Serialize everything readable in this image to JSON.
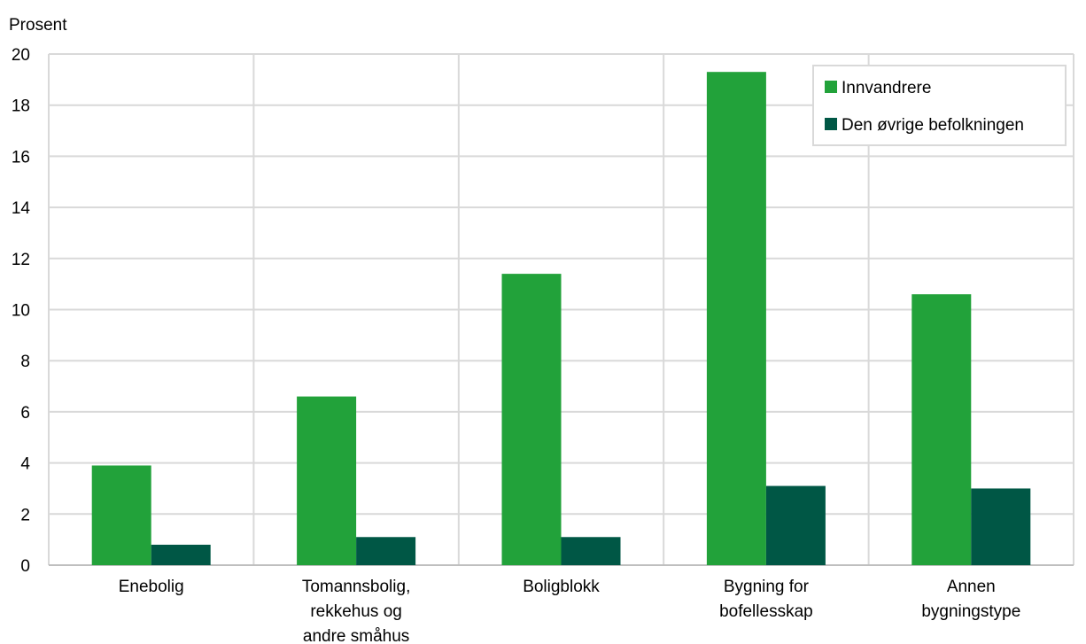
{
  "chart_data": {
    "type": "bar",
    "ylabel": "Prosent",
    "xlabel": "",
    "ylim": [
      0,
      20
    ],
    "yticks": [
      0,
      2,
      4,
      6,
      8,
      10,
      12,
      14,
      16,
      18,
      20
    ],
    "grid": true,
    "legend_position": "top-right",
    "categories": [
      [
        "Enebolig"
      ],
      [
        "Tomannsbolig,",
        "rekkehus og",
        "andre småhus"
      ],
      [
        "Boligblokk"
      ],
      [
        "Bygning for",
        "bofellesskap"
      ],
      [
        "Annen",
        "bygningstype"
      ]
    ],
    "series": [
      {
        "name": "Innvandrere",
        "color": "#22a23a",
        "values": [
          3.9,
          6.6,
          11.4,
          19.3,
          10.6
        ]
      },
      {
        "name": "Den øvrige befolkningen",
        "color": "#005745",
        "values": [
          0.8,
          1.1,
          1.1,
          3.1,
          3.0
        ]
      }
    ]
  }
}
